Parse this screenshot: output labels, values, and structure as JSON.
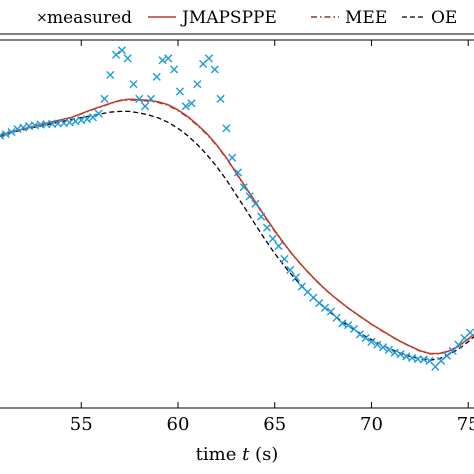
{
  "chart_data": {
    "type": "line",
    "xlabel": "time t (s)",
    "xlabel_parts": [
      "time ",
      "t",
      " (s)"
    ],
    "xlim": [
      50.8,
      75.3
    ],
    "ylim": [
      0,
      1
    ],
    "x_ticks": [
      55,
      60,
      65,
      70,
      75
    ],
    "x_tick_labels": [
      "55",
      "60",
      "65",
      "70",
      "75"
    ],
    "grid": false,
    "legend_placement": "top",
    "series": [
      {
        "name": "measured",
        "style": "markers-x",
        "color": "#1f9bd8",
        "x": [
          50.8,
          51.1,
          51.4,
          51.7,
          52.0,
          52.3,
          52.6,
          52.9,
          53.2,
          53.5,
          53.8,
          54.1,
          54.4,
          54.7,
          55.0,
          55.3,
          55.6,
          55.9,
          56.2,
          56.5,
          56.8,
          57.1,
          57.4,
          57.7,
          58.0,
          58.3,
          58.6,
          58.9,
          59.2,
          59.5,
          59.8,
          60.1,
          60.4,
          60.7,
          61.0,
          61.3,
          61.6,
          61.9,
          62.2,
          62.5,
          62.8,
          63.1,
          63.4,
          63.7,
          64.0,
          64.3,
          64.6,
          64.9,
          65.2,
          65.5,
          65.8,
          66.1,
          66.4,
          66.7,
          67.0,
          67.3,
          67.6,
          67.9,
          68.2,
          68.5,
          68.8,
          69.1,
          69.4,
          69.7,
          70.0,
          70.3,
          70.6,
          70.9,
          71.2,
          71.5,
          71.8,
          72.1,
          72.4,
          72.7,
          73.0,
          73.3,
          73.6,
          73.9,
          74.2,
          74.5,
          74.8,
          75.1
        ],
        "y": [
          0.74,
          0.744,
          0.75,
          0.758,
          0.762,
          0.766,
          0.768,
          0.77,
          0.771,
          0.772,
          0.773,
          0.774,
          0.776,
          0.779,
          0.782,
          0.785,
          0.79,
          0.8,
          0.84,
          0.905,
          0.96,
          0.972,
          0.95,
          0.88,
          0.84,
          0.82,
          0.84,
          0.9,
          0.945,
          0.95,
          0.92,
          0.86,
          0.82,
          0.828,
          0.88,
          0.935,
          0.95,
          0.92,
          0.84,
          0.76,
          0.68,
          0.64,
          0.6,
          0.575,
          0.555,
          0.52,
          0.49,
          0.46,
          0.44,
          0.405,
          0.375,
          0.355,
          0.33,
          0.315,
          0.3,
          0.285,
          0.272,
          0.262,
          0.245,
          0.23,
          0.225,
          0.215,
          0.2,
          0.19,
          0.18,
          0.172,
          0.165,
          0.158,
          0.15,
          0.146,
          0.14,
          0.136,
          0.133,
          0.132,
          0.128,
          0.112,
          0.128,
          0.142,
          0.155,
          0.172,
          0.19,
          0.205
        ]
      },
      {
        "name": "JMAPSPPE",
        "style": "solid",
        "color": "#c0392b",
        "x": [
          50.8,
          51.5,
          52.5,
          53.5,
          54.5,
          55.5,
          56.5,
          57.0,
          57.5,
          58.0,
          58.5,
          59.0,
          59.5,
          60.0,
          60.5,
          61.0,
          61.5,
          62.0,
          62.5,
          63.0,
          63.5,
          64.0,
          64.5,
          65.0,
          65.5,
          66.0,
          66.5,
          67.0,
          67.5,
          68.0,
          68.5,
          69.0,
          69.5,
          70.0,
          70.5,
          71.0,
          71.5,
          72.0,
          72.5,
          73.0,
          73.5,
          74.0,
          74.5,
          75.0,
          75.3
        ],
        "y": [
          0.74,
          0.752,
          0.765,
          0.778,
          0.79,
          0.81,
          0.828,
          0.836,
          0.839,
          0.838,
          0.836,
          0.832,
          0.824,
          0.81,
          0.792,
          0.77,
          0.745,
          0.715,
          0.68,
          0.64,
          0.6,
          0.56,
          0.52,
          0.482,
          0.446,
          0.412,
          0.382,
          0.354,
          0.328,
          0.305,
          0.284,
          0.264,
          0.246,
          0.228,
          0.212,
          0.196,
          0.181,
          0.168,
          0.156,
          0.148,
          0.148,
          0.155,
          0.168,
          0.188,
          0.2
        ]
      },
      {
        "name": "MEE",
        "style": "dash-dot",
        "color": "#8e3a1e",
        "x": [
          50.8,
          51.5,
          52.5,
          53.5,
          54.5,
          55.5,
          56.5,
          57.0,
          57.5,
          58.0,
          58.5,
          59.0,
          59.5,
          60.0,
          60.5,
          61.0,
          61.5,
          62.0,
          62.5,
          63.0,
          63.5,
          64.0,
          64.5,
          65.0,
          65.5,
          66.0,
          66.5,
          67.0,
          67.5,
          68.0,
          68.5,
          69.0,
          69.5,
          70.0,
          70.5,
          71.0,
          71.5,
          72.0,
          72.5,
          73.0,
          73.5,
          74.0,
          74.5,
          75.0,
          75.3
        ],
        "y": [
          0.742,
          0.752,
          0.764,
          0.777,
          0.789,
          0.809,
          0.827,
          0.835,
          0.837,
          0.836,
          0.834,
          0.83,
          0.822,
          0.808,
          0.79,
          0.768,
          0.743,
          0.713,
          0.678,
          0.638,
          0.598,
          0.558,
          0.518,
          0.48,
          0.444,
          0.411,
          0.381,
          0.353,
          0.327,
          0.304,
          0.283,
          0.263,
          0.245,
          0.227,
          0.211,
          0.195,
          0.18,
          0.167,
          0.155,
          0.147,
          0.147,
          0.154,
          0.167,
          0.187,
          0.199
        ]
      },
      {
        "name": "OE",
        "style": "dashed",
        "color": "#000000",
        "x": [
          50.8,
          51.5,
          52.5,
          53.5,
          54.5,
          55.5,
          56.5,
          57.0,
          57.5,
          58.0,
          58.5,
          59.0,
          59.5,
          60.0,
          60.5,
          61.0,
          61.5,
          62.0,
          62.5,
          63.0,
          63.5,
          64.0,
          64.5,
          65.0,
          65.5,
          66.0,
          66.5,
          67.0,
          67.5,
          68.0,
          68.5,
          69.0,
          69.5,
          70.0,
          70.5,
          71.0,
          71.5,
          72.0,
          72.5,
          73.0,
          73.5,
          74.0,
          74.5,
          75.0,
          75.3
        ],
        "y": [
          0.738,
          0.75,
          0.762,
          0.773,
          0.784,
          0.794,
          0.804,
          0.806,
          0.806,
          0.802,
          0.796,
          0.788,
          0.776,
          0.76,
          0.74,
          0.716,
          0.688,
          0.656,
          0.62,
          0.58,
          0.54,
          0.498,
          0.458,
          0.42,
          0.386,
          0.354,
          0.326,
          0.3,
          0.276,
          0.254,
          0.234,
          0.216,
          0.2,
          0.186,
          0.172,
          0.16,
          0.149,
          0.14,
          0.134,
          0.13,
          0.134,
          0.145,
          0.16,
          0.18,
          0.194
        ]
      }
    ]
  }
}
